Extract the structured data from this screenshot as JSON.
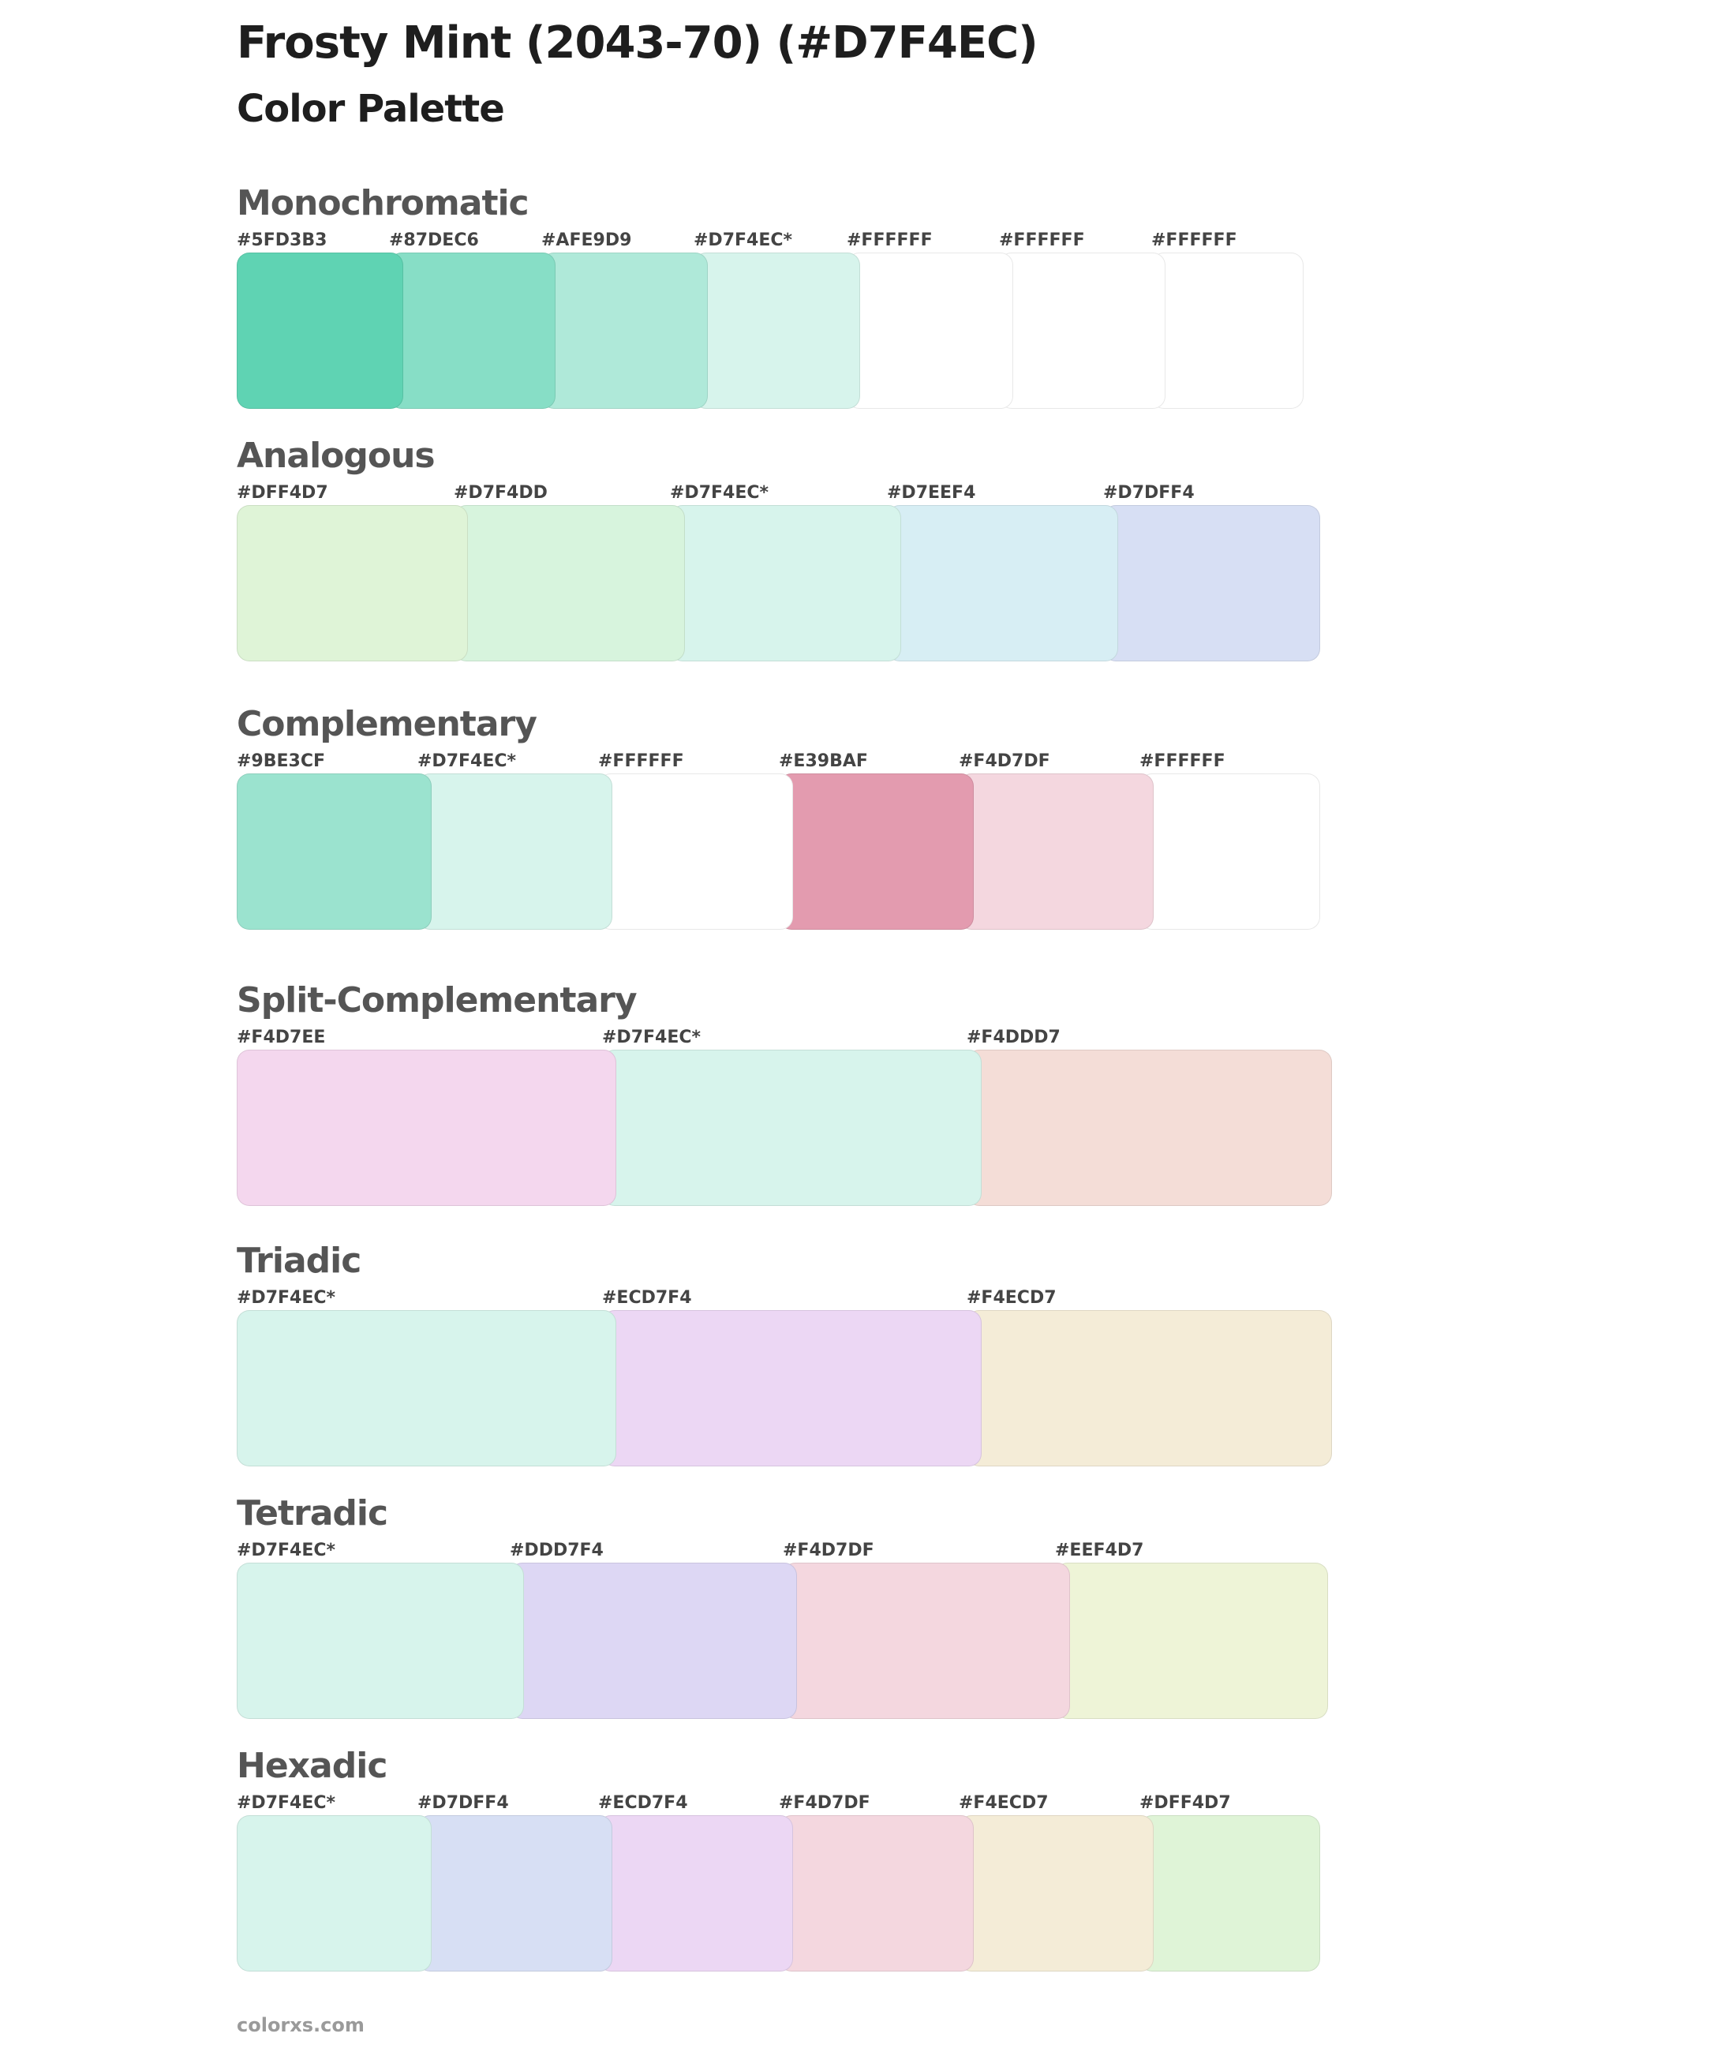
{
  "page": {
    "title": "Frosty Mint (2043-70) (#D7F4EC)",
    "subtitle": "Color Palette",
    "footer": "colorxs.com"
  },
  "sections": [
    {
      "title": "Monochromatic",
      "swatches": [
        {
          "label": "#5FD3B3",
          "color": "#5FD3B3"
        },
        {
          "label": "#87DEC6",
          "color": "#87DEC6"
        },
        {
          "label": "#AFE9D9",
          "color": "#AFE9D9"
        },
        {
          "label": "#D7F4EC*",
          "color": "#D7F4EC"
        },
        {
          "label": "#FFFFFF",
          "color": "#FFFFFF"
        },
        {
          "label": "#FFFFFF",
          "color": "#FFFFFF"
        },
        {
          "label": "#FFFFFF",
          "color": "#FFFFFF"
        }
      ]
    },
    {
      "title": "Analogous",
      "swatches": [
        {
          "label": "#DFF4D7",
          "color": "#DFF4D7"
        },
        {
          "label": "#D7F4DD",
          "color": "#D7F4DD"
        },
        {
          "label": "#D7F4EC*",
          "color": "#D7F4EC"
        },
        {
          "label": "#D7EEF4",
          "color": "#D7EEF4"
        },
        {
          "label": "#D7DFF4",
          "color": "#D7DFF4"
        }
      ]
    },
    {
      "title": "Complementary",
      "swatches": [
        {
          "label": "#9BE3CF",
          "color": "#9BE3CF"
        },
        {
          "label": "#D7F4EC*",
          "color": "#D7F4EC"
        },
        {
          "label": "#FFFFFF",
          "color": "#FFFFFF"
        },
        {
          "label": "#E39BAF",
          "color": "#E39BAF"
        },
        {
          "label": "#F4D7DF",
          "color": "#F4D7DF"
        },
        {
          "label": "#FFFFFF",
          "color": "#FFFFFF"
        }
      ]
    },
    {
      "title": "Split-Complementary",
      "swatches": [
        {
          "label": "#F4D7EE",
          "color": "#F4D7EE"
        },
        {
          "label": "#D7F4EC*",
          "color": "#D7F4EC"
        },
        {
          "label": "#F4DDD7",
          "color": "#F4DDD7"
        }
      ]
    },
    {
      "title": "Triadic",
      "swatches": [
        {
          "label": "#D7F4EC*",
          "color": "#D7F4EC"
        },
        {
          "label": "#ECD7F4",
          "color": "#ECD7F4"
        },
        {
          "label": "#F4ECD7",
          "color": "#F4ECD7"
        }
      ]
    },
    {
      "title": "Tetradic",
      "swatches": [
        {
          "label": "#D7F4EC*",
          "color": "#D7F4EC"
        },
        {
          "label": "#DDD7F4",
          "color": "#DDD7F4"
        },
        {
          "label": "#F4D7DF",
          "color": "#F4D7DF"
        },
        {
          "label": "#EEF4D7",
          "color": "#EEF4D7"
        }
      ]
    },
    {
      "title": "Hexadic",
      "swatches": [
        {
          "label": "#D7F4EC*",
          "color": "#D7F4EC"
        },
        {
          "label": "#D7DFF4",
          "color": "#D7DFF4"
        },
        {
          "label": "#ECD7F4",
          "color": "#ECD7F4"
        },
        {
          "label": "#F4D7DF",
          "color": "#F4D7DF"
        },
        {
          "label": "#F4ECD7",
          "color": "#F4ECD7"
        },
        {
          "label": "#DFF4D7",
          "color": "#DFF4D7"
        }
      ]
    }
  ]
}
